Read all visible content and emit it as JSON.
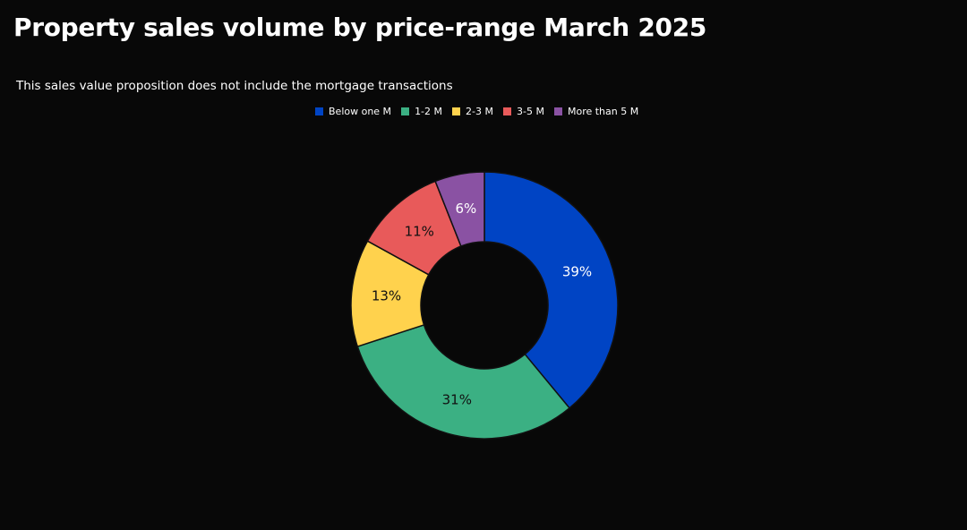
{
  "chart_data": {
    "type": "pie",
    "title": "Property sales volume by price-range March 2025",
    "subtitle": "This sales value proposition does not include the mortgage transactions",
    "legend_position": "top",
    "donut": true,
    "categories": [
      "Below one M",
      "1-2 M",
      "2-3 M",
      "3-5 M",
      "More than 5 M"
    ],
    "values": [
      39,
      31,
      13,
      11,
      6
    ],
    "labels": [
      "39%",
      "31%",
      "13%",
      "11%",
      "6%"
    ],
    "colors": [
      "#0044C4",
      "#3BB083",
      "#FFD24D",
      "#E85A5A",
      "#8A52A3"
    ],
    "label_colors": [
      "#ffffff",
      "#111111",
      "#111111",
      "#111111",
      "#ffffff"
    ]
  }
}
